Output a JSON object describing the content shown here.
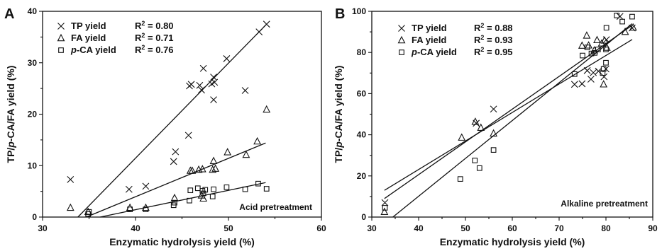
{
  "chart_data": [
    {
      "panel": "A",
      "type": "scatter",
      "xlabel": "Enzymatic hydrolysis yield (%)",
      "ylabel": "TP/p-CA/FA yield (%)",
      "xlim": [
        30,
        60
      ],
      "ylim": [
        0,
        40
      ],
      "xticks": [
        30,
        40,
        50,
        60
      ],
      "yticks": [
        0,
        10,
        20,
        30,
        40
      ],
      "annotation": "Acid pretreatment",
      "legend_position": "top-left",
      "series": [
        {
          "name": "TP yield",
          "r2_label": "R² = 0.80",
          "marker": "x",
          "points": [
            [
              33.0,
              7.3
            ],
            [
              39.3,
              5.4
            ],
            [
              41.1,
              6.0
            ],
            [
              44.1,
              10.8
            ],
            [
              44.3,
              12.7
            ],
            [
              45.7,
              15.9
            ],
            [
              45.8,
              25.5
            ],
            [
              46.0,
              25.8
            ],
            [
              46.9,
              25.6
            ],
            [
              47.1,
              24.7
            ],
            [
              47.3,
              28.9
            ],
            [
              48.2,
              25.9
            ],
            [
              48.4,
              22.8
            ],
            [
              48.4,
              27.2
            ],
            [
              48.5,
              26.2
            ],
            [
              49.8,
              30.8
            ],
            [
              51.8,
              24.6
            ],
            [
              53.3,
              36.0
            ],
            [
              54.1,
              37.5
            ]
          ],
          "fit": [
            [
              33.8,
              0
            ],
            [
              54.1,
              37.5
            ]
          ]
        },
        {
          "name": "FA yield",
          "r2_label": "R² = 0.71",
          "marker": "triangle",
          "points": [
            [
              33.0,
              1.8
            ],
            [
              34.9,
              1.0
            ],
            [
              39.4,
              1.8
            ],
            [
              41.1,
              1.8
            ],
            [
              44.2,
              3.7
            ],
            [
              45.9,
              9.0
            ],
            [
              46.1,
              9.0
            ],
            [
              46.8,
              9.2
            ],
            [
              47.2,
              9.3
            ],
            [
              47.3,
              3.6
            ],
            [
              48.3,
              9.2
            ],
            [
              48.4,
              10.9
            ],
            [
              48.6,
              9.4
            ],
            [
              49.9,
              12.6
            ],
            [
              51.9,
              12.1
            ],
            [
              53.1,
              14.7
            ],
            [
              54.1,
              20.9
            ],
            [
              47.1,
              4.2
            ]
          ],
          "fit": [
            [
              34.7,
              0
            ],
            [
              54.0,
              14.4
            ]
          ]
        },
        {
          "name": "p-CA yield",
          "r2_label": "R² = 0.76",
          "marker": "square",
          "points": [
            [
              34.9,
              0.6
            ],
            [
              35.0,
              1.0
            ],
            [
              39.4,
              1.5
            ],
            [
              41.1,
              1.5
            ],
            [
              44.1,
              2.3
            ],
            [
              44.2,
              2.8
            ],
            [
              45.8,
              3.2
            ],
            [
              45.9,
              5.2
            ],
            [
              46.7,
              5.6
            ],
            [
              47.2,
              5.1
            ],
            [
              47.3,
              4.6
            ],
            [
              47.5,
              5.3
            ],
            [
              48.3,
              4.0
            ],
            [
              48.4,
              5.4
            ],
            [
              49.8,
              5.8
            ],
            [
              51.8,
              5.4
            ],
            [
              53.2,
              6.5
            ],
            [
              54.1,
              5.5
            ]
          ],
          "fit": [
            [
              36.2,
              0
            ],
            [
              54.0,
              6.7
            ]
          ]
        }
      ]
    },
    {
      "panel": "B",
      "type": "scatter",
      "xlabel": "Enzymatic hydrolysis yield (%)",
      "ylabel": "TP/p-CA/FA yield (%)",
      "xlim": [
        30,
        90
      ],
      "ylim": [
        0,
        100
      ],
      "xticks": [
        30,
        40,
        50,
        60,
        70,
        80,
        90
      ],
      "yticks": [
        0,
        20,
        40,
        60,
        80,
        100
      ],
      "annotation": "Alkaline pretreatment",
      "legend_position": "top-left",
      "series": [
        {
          "name": "TP yield",
          "r2_label": "R² = 0.88",
          "marker": "x",
          "points": [
            [
              32.8,
              7.0
            ],
            [
              52.3,
              45.6
            ],
            [
              56.0,
              52.5
            ],
            [
              73.3,
              64.5
            ],
            [
              74.9,
              64.8
            ],
            [
              76.0,
              71.2
            ],
            [
              76.8,
              67.0
            ],
            [
              77.3,
              70.2
            ],
            [
              78.4,
              70.9
            ],
            [
              79.6,
              68.2
            ],
            [
              80.0,
              72.0
            ],
            [
              80.1,
              86.2
            ],
            [
              83.0,
              97.5
            ],
            [
              85.6,
              91.9
            ]
          ],
          "fit": [
            [
              34.5,
              0
            ],
            [
              85.6,
              94.0
            ]
          ]
        },
        {
          "name": "FA yield",
          "r2_label": "R² = 0.93",
          "marker": "triangle",
          "points": [
            [
              32.7,
              2.5
            ],
            [
              49.2,
              38.6
            ],
            [
              52.1,
              46.3
            ],
            [
              53.3,
              43.4
            ],
            [
              56.0,
              40.6
            ],
            [
              74.9,
              83.3
            ],
            [
              75.9,
              88.2
            ],
            [
              76.3,
              83.4
            ],
            [
              77.5,
              81.0
            ],
            [
              78.1,
              86.0
            ],
            [
              79.1,
              84.4
            ],
            [
              79.5,
              64.5
            ],
            [
              79.7,
              85.8
            ],
            [
              80.2,
              82.3
            ],
            [
              84.1,
              90.0
            ],
            [
              85.8,
              92.1
            ]
          ],
          "fit": [
            [
              32.7,
              9.0
            ],
            [
              85.6,
              93.2
            ]
          ]
        },
        {
          "name": "p-CA yield",
          "r2_label": "R² = 0.95",
          "marker": "square",
          "points": [
            [
              32.8,
              4.5
            ],
            [
              48.9,
              18.5
            ],
            [
              52.0,
              27.5
            ],
            [
              53.0,
              23.8
            ],
            [
              56.0,
              32.6
            ],
            [
              73.3,
              69.5
            ],
            [
              75.0,
              78.5
            ],
            [
              76.0,
              82.5
            ],
            [
              76.9,
              79.5
            ],
            [
              77.6,
              79.8
            ],
            [
              78.3,
              81.5
            ],
            [
              79.3,
              70.0
            ],
            [
              79.5,
              72.0
            ],
            [
              80.0,
              75.0
            ],
            [
              80.0,
              81.5
            ],
            [
              80.1,
              92.0
            ],
            [
              82.3,
              98.0
            ],
            [
              83.5,
              95.0
            ],
            [
              85.6,
              97.4
            ]
          ],
          "fit": [
            [
              32.7,
              13.0
            ],
            [
              85.6,
              86.3
            ]
          ]
        }
      ]
    }
  ]
}
